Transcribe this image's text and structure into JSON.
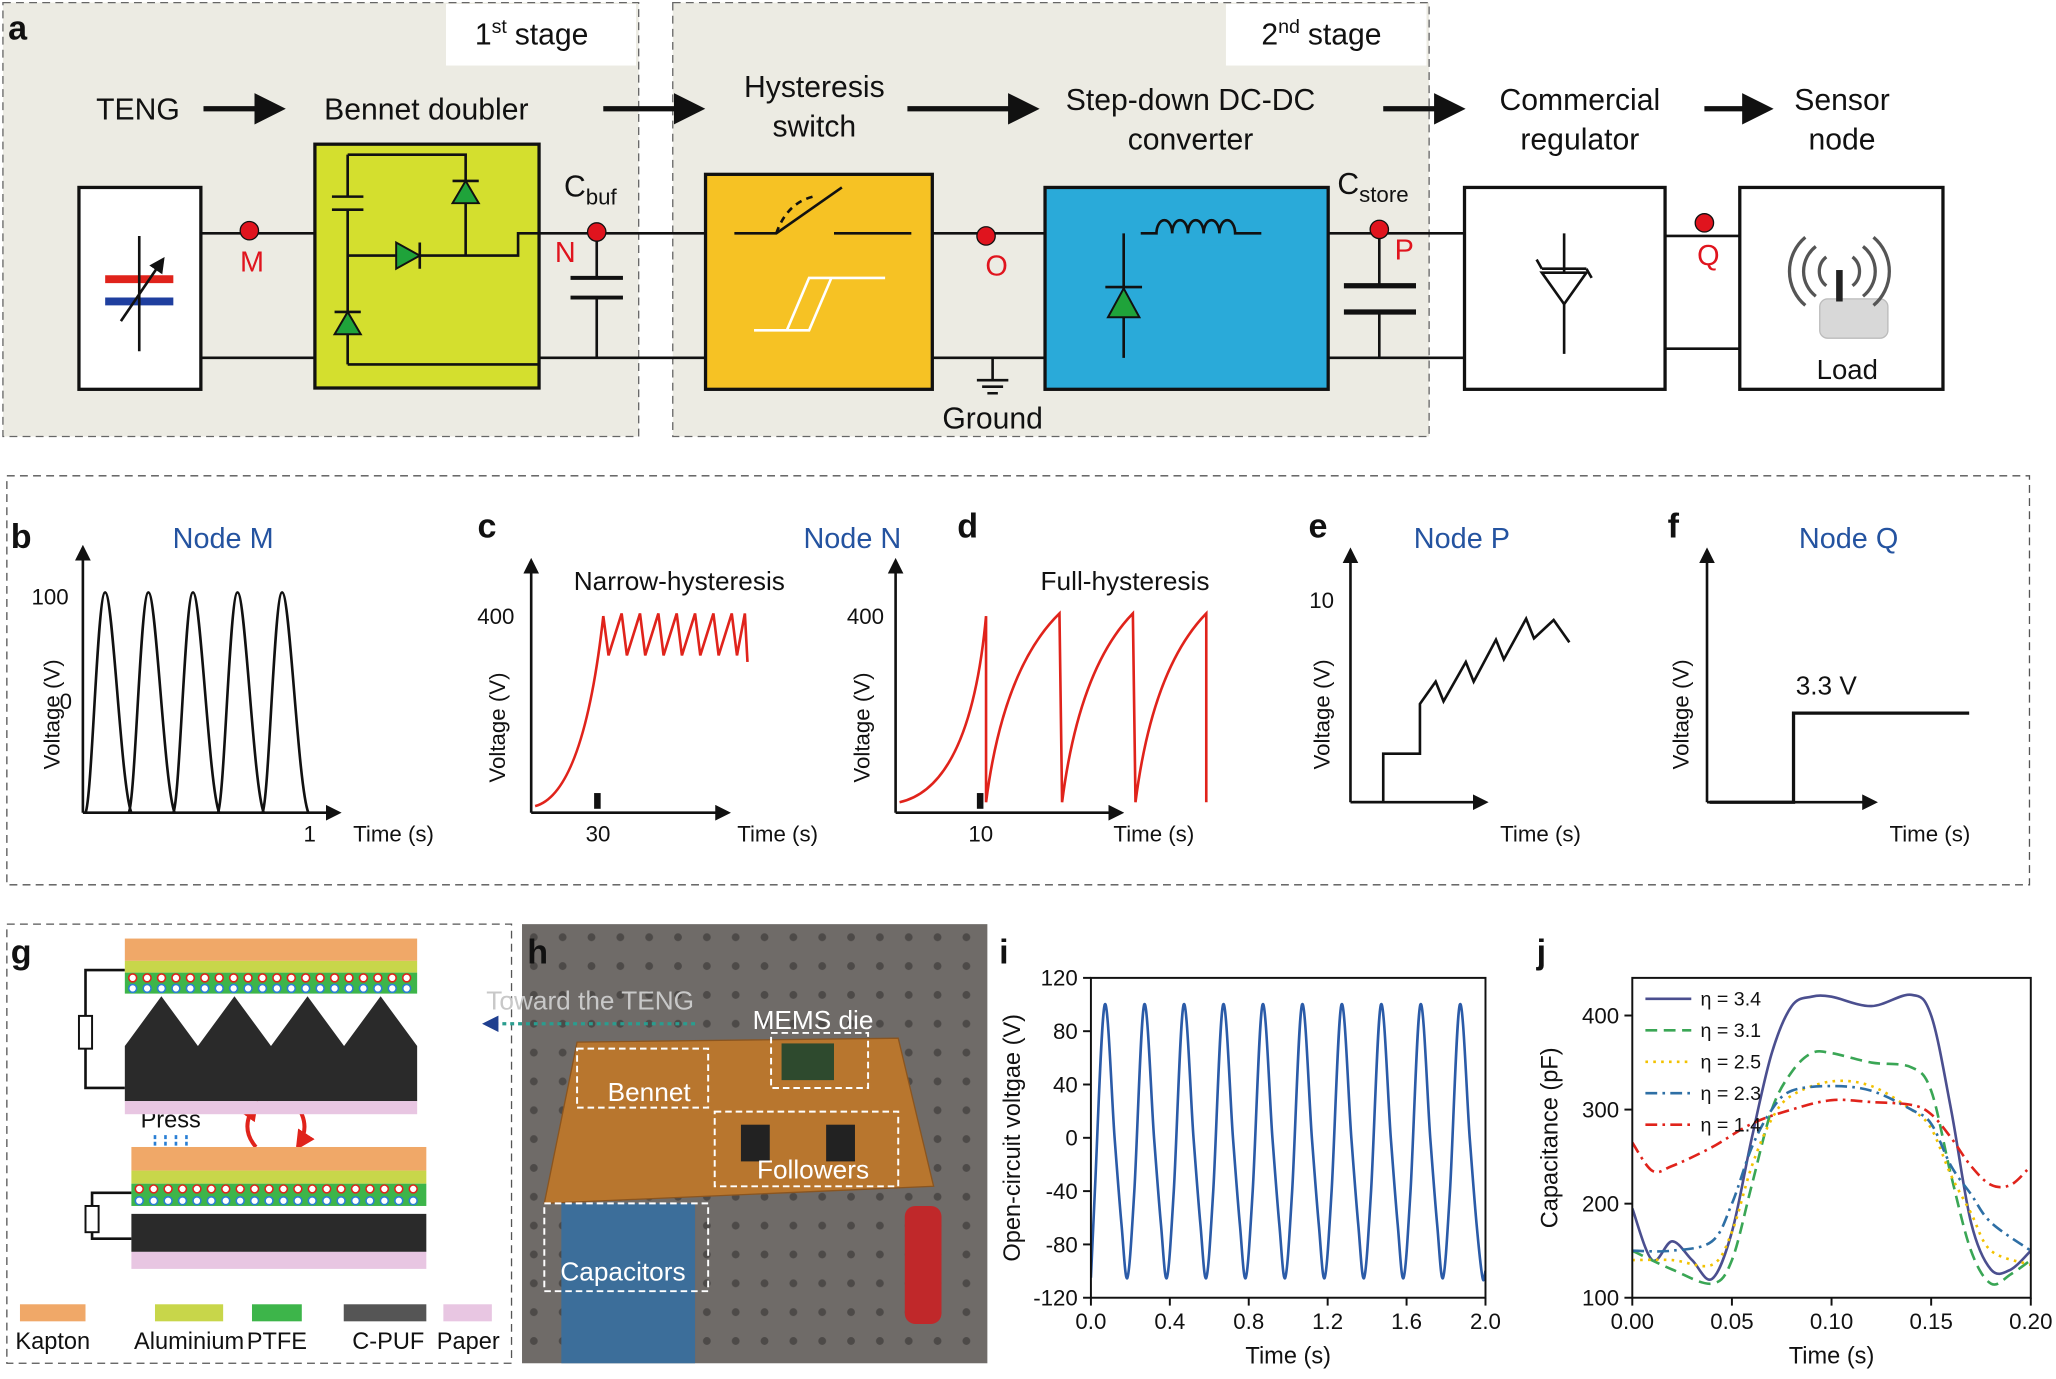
{
  "panel_a": {
    "label": "a",
    "stage_1": {
      "number": "1",
      "sup": "st",
      "text": "stage"
    },
    "stage_2": {
      "number": "2",
      "sup": "nd",
      "text": "stage"
    },
    "blocks": [
      [
        "TENG"
      ],
      [
        "Bennet doubler"
      ],
      [
        "Hysteresis",
        "switch"
      ],
      [
        "Step-down DC-DC",
        "converter"
      ],
      [
        "Commercial",
        "regulator"
      ],
      [
        "Sensor",
        "node"
      ]
    ],
    "nodes": [
      "M",
      "N",
      "O",
      "P",
      "Q"
    ],
    "c_buf": {
      "base": "C",
      "sub": "buf"
    },
    "c_store": {
      "base": "C",
      "sub": "store"
    },
    "ground": "Ground",
    "load": "Load"
  },
  "panels_b_f": [
    {
      "label": "b",
      "title": "Node M",
      "ylabel": "Voltage (V)",
      "xlabel": "Time (s)",
      "y_labels": [
        100,
        0
      ],
      "x_labels": [
        1
      ]
    },
    {
      "label": "c",
      "title": "Node N",
      "subtitle": "Narrow-hysteresis",
      "ylabel": "Voltage (V)",
      "xlabel": "Time (s)",
      "y_labels": [
        400
      ],
      "x_labels": [
        30
      ]
    },
    {
      "label": "d",
      "subtitle": "Full-hysteresis",
      "ylabel": "Voltage (V)",
      "xlabel": "Time (s)",
      "y_labels": [
        400
      ],
      "x_labels": [
        10
      ]
    },
    {
      "label": "e",
      "title": "Node P",
      "ylabel": "Voltage (V)",
      "xlabel": "Time (s)",
      "y_labels": [
        10
      ]
    },
    {
      "label": "f",
      "title": "Node Q",
      "ylabel": "Voltage (V)",
      "xlabel": "Time (s)",
      "annotation": "3.3 V"
    }
  ],
  "panel_g": {
    "label": "g",
    "press": "Press",
    "legend": [
      {
        "name": "Kapton",
        "color": "#f0a868"
      },
      {
        "name": "Aluminium",
        "color": "#c8d64a"
      },
      {
        "name": "PTFE",
        "color": "#3db54a"
      },
      {
        "name": "C-PUF",
        "color": "#555555"
      },
      {
        "name": "Paper",
        "color": "#e8c6e2"
      }
    ]
  },
  "panel_h": {
    "label": "h",
    "annotations": [
      "Toward the TENG",
      "MEMS die",
      "Bennet",
      "Followers",
      "Capacitors"
    ]
  },
  "chart_data": [
    {
      "type": "line",
      "panel_label": "i",
      "xlabel": "Time (s)",
      "ylabel": "Open-circuit voltgae (V)",
      "xlim": [
        0,
        2.0
      ],
      "ylim": [
        -120,
        120
      ],
      "xticks": [
        {
          "value": 0,
          "label": "0.0"
        },
        {
          "value": 0.4,
          "label": "0.4"
        },
        {
          "value": 0.8,
          "label": "0.8"
        },
        {
          "value": 1.2,
          "label": "1.2"
        },
        {
          "value": 1.6,
          "label": "1.6"
        },
        {
          "value": 2.0,
          "label": "2.0"
        }
      ],
      "yticks": [
        -120,
        -80,
        -40,
        0,
        40,
        80,
        120
      ],
      "series": [
        {
          "color": "#2b5ba8",
          "dash": "solid",
          "x": [
            0,
            0.02,
            0.07,
            0.12,
            0.155,
            0.185,
            0.22,
            0.27,
            0.32,
            0.355,
            0.385,
            0.42,
            0.47,
            0.52,
            0.555,
            0.585,
            0.62,
            0.67,
            0.72,
            0.755,
            0.785,
            0.82,
            0.87,
            0.92,
            0.955,
            0.985,
            1.02,
            1.07,
            1.12,
            1.155,
            1.185,
            1.22,
            1.27,
            1.32,
            1.355,
            1.385,
            1.42,
            1.47,
            1.52,
            1.555,
            1.585,
            1.62,
            1.67,
            1.72,
            1.755,
            1.785,
            1.82,
            1.87,
            1.92,
            1.955,
            1.985,
            2.0
          ],
          "values": [
            -105,
            -40,
            100,
            0,
            -65,
            -105,
            -40,
            100,
            0,
            -65,
            -105,
            -40,
            100,
            0,
            -65,
            -105,
            -40,
            100,
            0,
            -65,
            -105,
            -40,
            100,
            0,
            -65,
            -105,
            -40,
            100,
            0,
            -65,
            -105,
            -40,
            100,
            0,
            -65,
            -105,
            -40,
            100,
            0,
            -65,
            -105,
            -40,
            100,
            0,
            -65,
            -105,
            -40,
            100,
            0,
            -65,
            -105,
            -100
          ]
        }
      ]
    },
    {
      "type": "line",
      "panel_label": "j",
      "xlabel": "Time (s)",
      "ylabel": "Capacitance (pF)",
      "xlim": [
        0,
        0.2
      ],
      "ylim": [
        100,
        440
      ],
      "xticks": [
        {
          "value": 0,
          "label": "0.00"
        },
        {
          "value": 0.05,
          "label": "0.05"
        },
        {
          "value": 0.1,
          "label": "0.10"
        },
        {
          "value": 0.15,
          "label": "0.15"
        },
        {
          "value": 0.2,
          "label": "0.20"
        }
      ],
      "yticks": [
        100,
        200,
        300,
        400
      ],
      "legend": "upper left",
      "series": [
        {
          "name": "η = 3.4",
          "color": "#4b4f8f",
          "dash": "solid",
          "x": [
            0,
            0.01,
            0.02,
            0.03,
            0.04,
            0.05,
            0.06,
            0.07,
            0.08,
            0.09,
            0.1,
            0.12,
            0.14,
            0.15,
            0.16,
            0.17,
            0.18,
            0.19,
            0.2
          ],
          "values": [
            195,
            140,
            160,
            140,
            120,
            170,
            270,
            360,
            410,
            420,
            420,
            410,
            422,
            400,
            300,
            180,
            130,
            130,
            150
          ]
        },
        {
          "name": "η = 3.1",
          "color": "#3aa655",
          "dash": "dashed",
          "x": [
            0,
            0.02,
            0.04,
            0.05,
            0.06,
            0.07,
            0.08,
            0.09,
            0.1,
            0.12,
            0.14,
            0.15,
            0.16,
            0.17,
            0.18,
            0.19,
            0.2
          ],
          "values": [
            150,
            130,
            115,
            140,
            220,
            300,
            340,
            360,
            360,
            350,
            345,
            320,
            230,
            150,
            115,
            125,
            140
          ]
        },
        {
          "name": "η = 2.5",
          "color": "#f2c200",
          "dash": "dotted",
          "x": [
            0,
            0.02,
            0.04,
            0.05,
            0.06,
            0.07,
            0.08,
            0.1,
            0.12,
            0.14,
            0.15,
            0.16,
            0.17,
            0.18,
            0.2
          ],
          "values": [
            140,
            140,
            135,
            170,
            240,
            290,
            315,
            330,
            325,
            300,
            280,
            230,
            190,
            150,
            135
          ]
        },
        {
          "name": "η = 2.3",
          "color": "#2e6fa5",
          "dash": "dashdot",
          "x": [
            0,
            0.02,
            0.04,
            0.05,
            0.06,
            0.07,
            0.08,
            0.1,
            0.12,
            0.14,
            0.15,
            0.16,
            0.17,
            0.18,
            0.2
          ],
          "values": [
            150,
            150,
            160,
            200,
            260,
            300,
            320,
            325,
            320,
            300,
            285,
            240,
            210,
            180,
            150
          ]
        },
        {
          "name": "η = 1.4",
          "color": "#e0231b",
          "dash": "dashdot",
          "x": [
            0,
            0.01,
            0.02,
            0.04,
            0.06,
            0.08,
            0.1,
            0.12,
            0.14,
            0.15,
            0.16,
            0.17,
            0.18,
            0.19,
            0.2
          ],
          "values": [
            265,
            235,
            240,
            260,
            285,
            300,
            310,
            308,
            305,
            295,
            270,
            240,
            220,
            220,
            240
          ]
        }
      ]
    }
  ]
}
